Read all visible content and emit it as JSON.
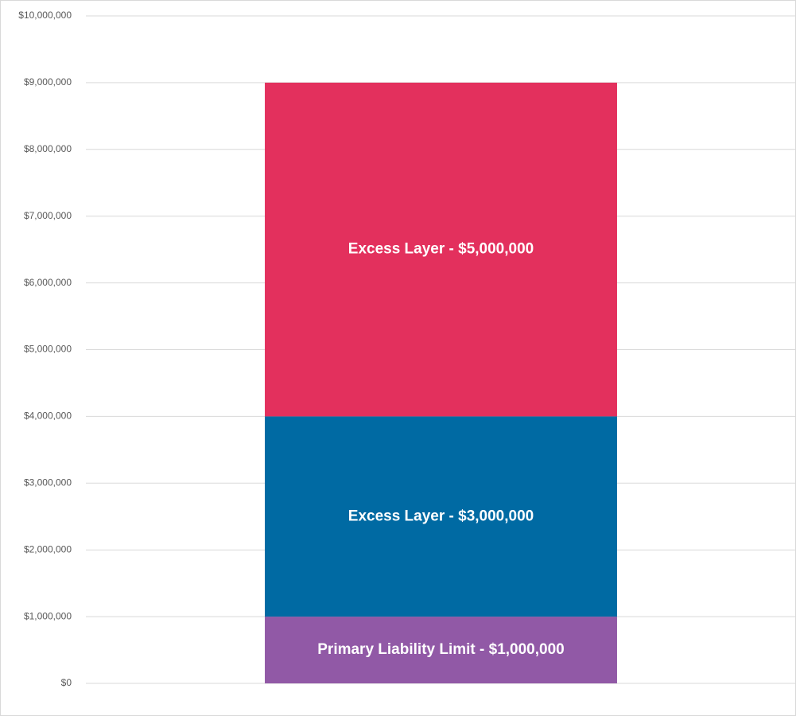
{
  "chart_data": {
    "type": "stacked-bar",
    "categories": [
      null
    ],
    "series": [
      {
        "color": "#9159a6",
        "values": [
          1000000
        ],
        "value_labels": [
          "Primary Liability Limit - $1,000,000"
        ]
      },
      {
        "color": "#006aa3",
        "values": [
          3000000
        ],
        "value_labels": [
          "Excess Layer - $3,000,000"
        ]
      },
      {
        "color": "#e3305d",
        "values": [
          5000000
        ],
        "value_labels": [
          "Excess Layer - $5,000,000"
        ]
      }
    ],
    "ylim": [
      0,
      10000000
    ],
    "yticks": [
      {
        "value": 0,
        "label": "$0"
      },
      {
        "value": 1000000,
        "label": "$1,000,000"
      },
      {
        "value": 2000000,
        "label": "$2,000,000"
      },
      {
        "value": 3000000,
        "label": "$3,000,000"
      },
      {
        "value": 4000000,
        "label": "$4,000,000"
      },
      {
        "value": 5000000,
        "label": "$5,000,000"
      },
      {
        "value": 6000000,
        "label": "$6,000,000"
      },
      {
        "value": 7000000,
        "label": "$7,000,000"
      },
      {
        "value": 8000000,
        "label": "$8,000,000"
      },
      {
        "value": 9000000,
        "label": "$9,000,000"
      },
      {
        "value": 10000000,
        "label": "$10,000,000"
      }
    ],
    "grid": true
  }
}
